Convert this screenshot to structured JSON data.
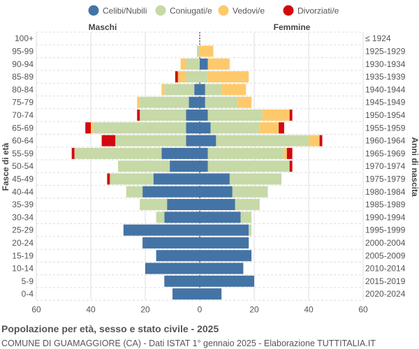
{
  "chart_data": {
    "type": "bar",
    "orientation": "horizontal-pyramid",
    "title": "Popolazione per età, sesso e stato civile - 2025",
    "subtitle": "COMUNE DI GUAMAGGIORE (CA) - Dati ISTAT 1° gennaio 2025 - Elaborazione TUTTITALIA.IT",
    "left_label": "Maschi",
    "right_label": "Femmine",
    "ylabel_left": "Fasce di età",
    "ylabel_right": "Anni di nascita",
    "xlim": [
      -60,
      60
    ],
    "xticks": [
      "60",
      "40",
      "20",
      "0",
      "20",
      "40",
      "60"
    ],
    "grid": true,
    "legend_position": "top",
    "legend": [
      {
        "name": "Celibi/Nubili",
        "color": "#4474a5"
      },
      {
        "name": "Coniugati/e",
        "color": "#c6d9a7"
      },
      {
        "name": "Vedovi/e",
        "color": "#fec96b"
      },
      {
        "name": "Divorziati/e",
        "color": "#d20a0f"
      }
    ],
    "age_groups": [
      "100+",
      "95-99",
      "90-94",
      "85-89",
      "80-84",
      "75-79",
      "70-74",
      "65-69",
      "60-64",
      "55-59",
      "50-54",
      "45-49",
      "40-44",
      "35-39",
      "30-34",
      "25-29",
      "20-24",
      "15-19",
      "10-14",
      "5-9",
      "0-4"
    ],
    "birth_years": [
      "≤ 1924",
      "1925-1929",
      "1930-1934",
      "1935-1939",
      "1940-1944",
      "1945-1949",
      "1950-1954",
      "1955-1959",
      "1960-1964",
      "1965-1969",
      "1970-1974",
      "1975-1979",
      "1980-1984",
      "1985-1989",
      "1990-1994",
      "1995-1999",
      "2000-2004",
      "2005-2009",
      "2010-2014",
      "2015-2019",
      "2020-2024"
    ],
    "males": {
      "celibi": [
        0,
        0,
        0,
        0,
        2,
        4,
        5,
        5,
        5,
        14,
        11,
        17,
        21,
        12,
        13,
        28,
        21,
        16,
        20,
        13,
        10
      ],
      "coniugati": [
        0,
        1,
        5,
        5,
        11,
        18,
        17,
        34,
        26,
        32,
        19,
        16,
        6,
        10,
        3,
        0,
        0,
        0,
        0,
        0,
        0
      ],
      "vedovi": [
        0,
        0,
        2,
        3,
        1,
        1,
        0,
        1,
        0,
        0,
        0,
        0,
        0,
        0,
        0,
        0,
        0,
        0,
        0,
        0,
        0
      ],
      "divorziati": [
        0,
        0,
        0,
        1,
        0,
        0,
        1,
        2,
        5,
        1,
        0,
        1,
        0,
        0,
        0,
        0,
        0,
        0,
        0,
        0,
        0
      ]
    },
    "females": {
      "nubili": [
        0,
        0,
        3,
        0,
        2,
        2,
        3,
        4,
        6,
        3,
        3,
        11,
        12,
        13,
        15,
        18,
        18,
        19,
        16,
        20,
        8
      ],
      "coniugate": [
        0,
        0,
        0,
        3,
        6,
        12,
        20,
        18,
        34,
        28,
        30,
        19,
        13,
        9,
        4,
        1,
        0,
        0,
        0,
        0,
        0
      ],
      "vedove": [
        0,
        5,
        8,
        15,
        9,
        5,
        10,
        7,
        4,
        1,
        0,
        0,
        0,
        0,
        0,
        0,
        0,
        0,
        0,
        0,
        0
      ],
      "divorziate": [
        0,
        0,
        0,
        0,
        0,
        0,
        1,
        2,
        1,
        2,
        1,
        0,
        0,
        0,
        0,
        0,
        0,
        0,
        0,
        0,
        0
      ]
    }
  }
}
